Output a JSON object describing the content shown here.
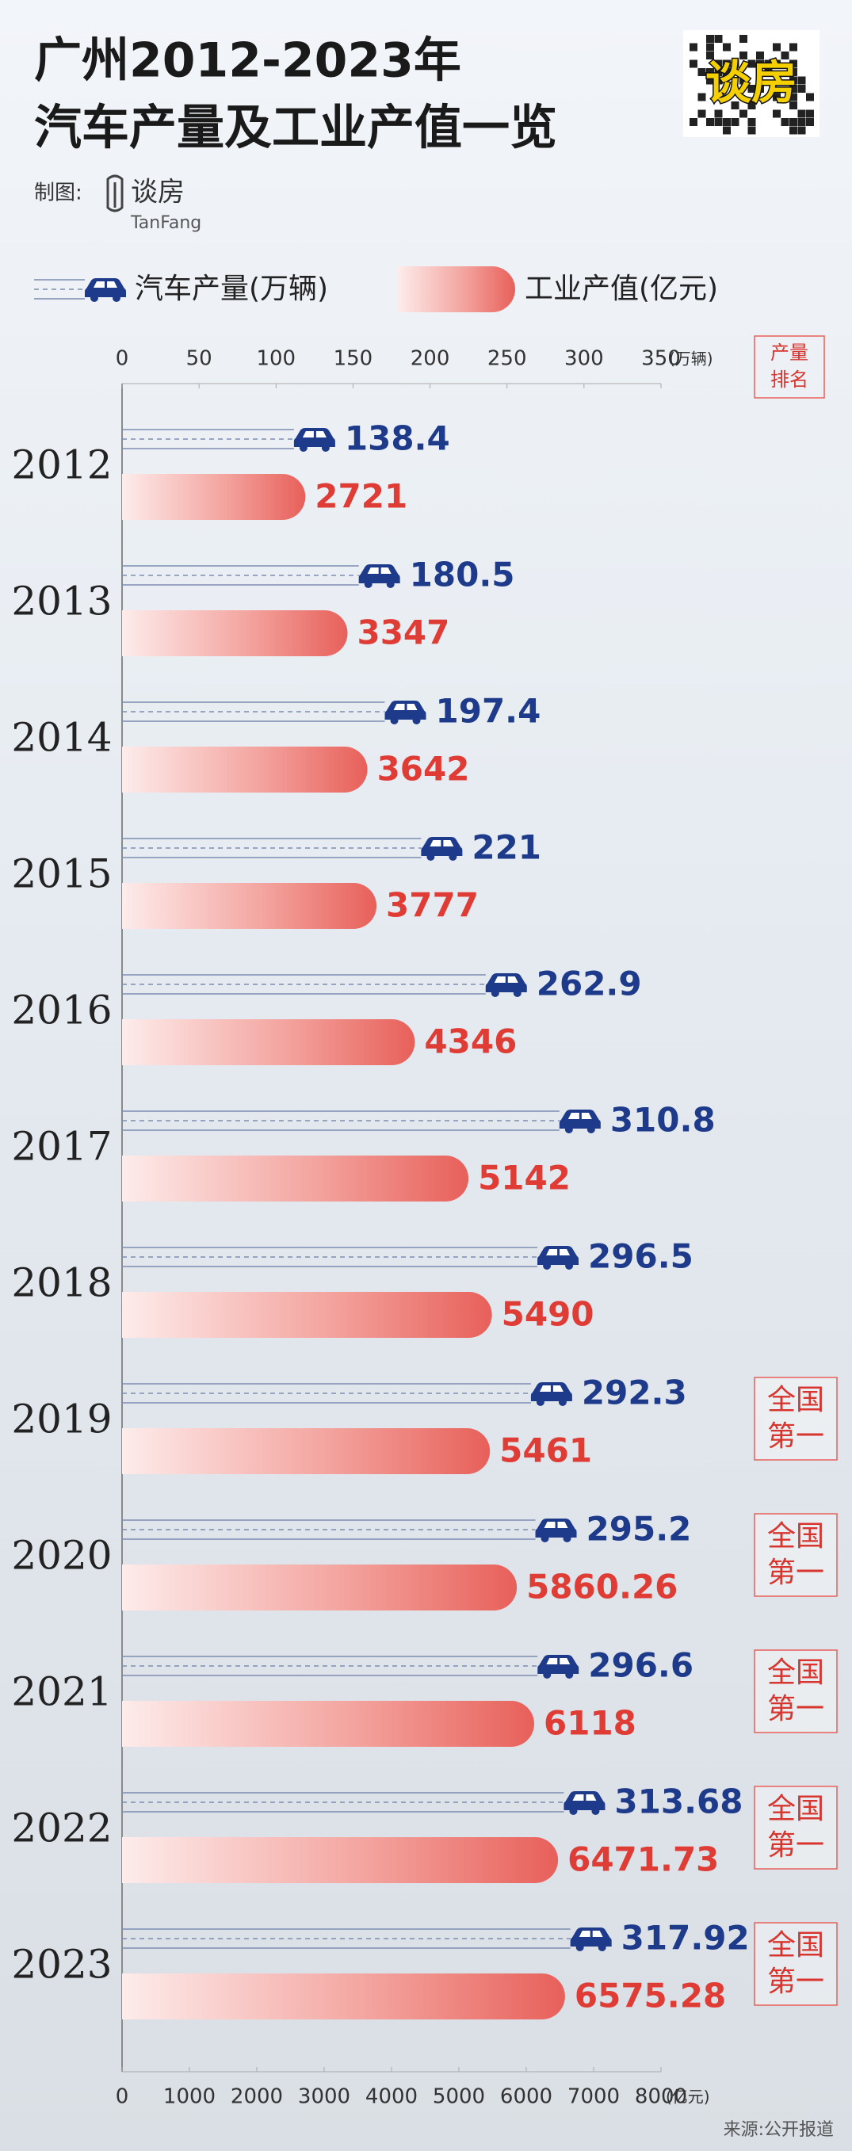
{
  "chart_data": {
    "type": "bar",
    "title": [
      "广州2012-2023年",
      "汽车产量及工业产值一览"
    ],
    "credit_label": "制图:",
    "brand": "谈房",
    "brand_en": "TanFang",
    "badge": "谈房",
    "categories": [
      "2012",
      "2013",
      "2014",
      "2015",
      "2016",
      "2017",
      "2018",
      "2019",
      "2020",
      "2021",
      "2022",
      "2023"
    ],
    "series": [
      {
        "name": "汽车产量(万辆)",
        "color": "#1e3a8a",
        "axis": "x2",
        "values": [
          138.4,
          180.5,
          197.4,
          221,
          262.9,
          310.8,
          296.5,
          292.3,
          295.2,
          296.6,
          313.68,
          317.92
        ]
      },
      {
        "name": "工业产值(亿元)",
        "color": "#e8605a",
        "values": [
          2721,
          3347,
          3642,
          3777,
          4346,
          5142,
          5490,
          5461,
          5860.26,
          6118,
          6471.73,
          6575.28
        ]
      }
    ],
    "x2lim": [
      0,
      350
    ],
    "x2ticks": [
      0,
      50,
      100,
      150,
      200,
      250,
      300,
      350
    ],
    "x2_unit": "(万辆)",
    "xlim": [
      0,
      8000
    ],
    "xticks": [
      0,
      1000,
      2000,
      3000,
      4000,
      5000,
      6000,
      7000,
      8000
    ],
    "x_unit": "(亿元)",
    "rank_header": [
      "产量",
      "排名"
    ],
    "ranks": [
      null,
      null,
      null,
      null,
      null,
      null,
      null,
      [
        "全国",
        "第一"
      ],
      [
        "全国",
        "第一"
      ],
      [
        "全国",
        "第一"
      ],
      [
        "全国",
        "第一"
      ],
      [
        "全国",
        "第一"
      ]
    ],
    "source": "来源:公开报道"
  }
}
